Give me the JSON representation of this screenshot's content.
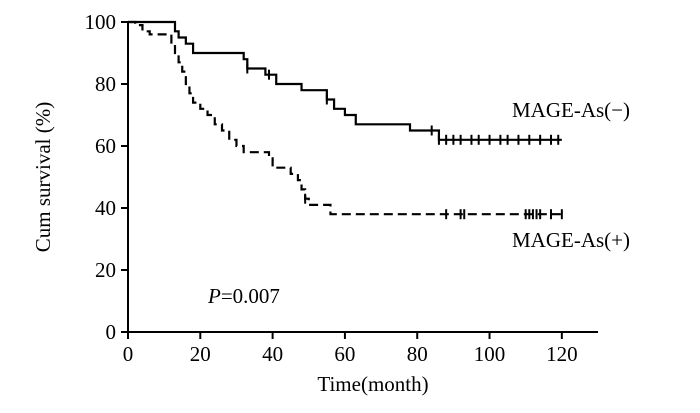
{
  "chart_data": {
    "type": "line",
    "title": "",
    "xlabel": "Time(month)",
    "ylabel": "Cum survival (%)",
    "xlim": [
      0,
      130
    ],
    "ylim": [
      0,
      100
    ],
    "xticks": [
      0,
      20,
      40,
      60,
      80,
      100,
      120
    ],
    "yticks": [
      0,
      20,
      40,
      60,
      80,
      100
    ],
    "grid": false,
    "annotation": {
      "italic": "P",
      "rest": "=0.007"
    },
    "series": [
      {
        "name": "MAGE-As(−)",
        "style": "solid",
        "color": "#000000",
        "points": [
          [
            0,
            100
          ],
          [
            12,
            100
          ],
          [
            13,
            97
          ],
          [
            14,
            95
          ],
          [
            16,
            93
          ],
          [
            18,
            90
          ],
          [
            31,
            90
          ],
          [
            32,
            88
          ],
          [
            33,
            85
          ],
          [
            37,
            85
          ],
          [
            38,
            83
          ],
          [
            41,
            80
          ],
          [
            47,
            80
          ],
          [
            48,
            78
          ],
          [
            54,
            78
          ],
          [
            55,
            75
          ],
          [
            57,
            72
          ],
          [
            60,
            70
          ],
          [
            63,
            67
          ],
          [
            77,
            67
          ],
          [
            78,
            65
          ],
          [
            85,
            65
          ],
          [
            86,
            62
          ],
          [
            120,
            62
          ]
        ],
        "censored": [
          33,
          39,
          55,
          84,
          86,
          88,
          90,
          92,
          95,
          97,
          100,
          103,
          105,
          108,
          111,
          114,
          117,
          119
        ]
      },
      {
        "name": "MAGE-As(+)",
        "style": "dashed",
        "color": "#000000",
        "points": [
          [
            0,
            100
          ],
          [
            2,
            99
          ],
          [
            4,
            97
          ],
          [
            6,
            96
          ],
          [
            11,
            96
          ],
          [
            12,
            93
          ],
          [
            13,
            90
          ],
          [
            14,
            87
          ],
          [
            15,
            84
          ],
          [
            16,
            80
          ],
          [
            17,
            77
          ],
          [
            18,
            74
          ],
          [
            20,
            72
          ],
          [
            22,
            70
          ],
          [
            24,
            67
          ],
          [
            26,
            65
          ],
          [
            28,
            62
          ],
          [
            30,
            60
          ],
          [
            32,
            58
          ],
          [
            38,
            58
          ],
          [
            39,
            56
          ],
          [
            40,
            53
          ],
          [
            44,
            53
          ],
          [
            45,
            51
          ],
          [
            47,
            49
          ],
          [
            48,
            46
          ],
          [
            49,
            43
          ],
          [
            50,
            41
          ],
          [
            55,
            41
          ],
          [
            56,
            38
          ],
          [
            120,
            38
          ]
        ],
        "censored": [
          49,
          88,
          92,
          93,
          110,
          111,
          112,
          113,
          114,
          117,
          120
        ]
      }
    ]
  }
}
